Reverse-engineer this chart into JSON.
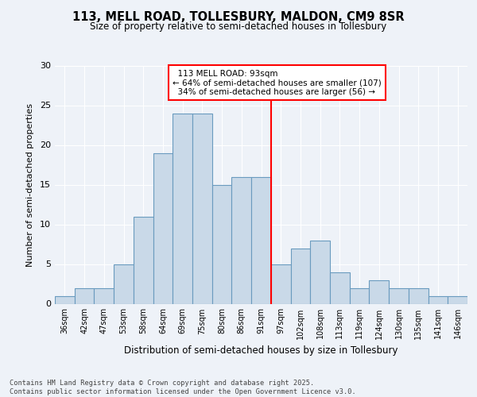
{
  "title_line1": "113, MELL ROAD, TOLLESBURY, MALDON, CM9 8SR",
  "title_line2": "Size of property relative to semi-detached houses in Tollesbury",
  "xlabel": "Distribution of semi-detached houses by size in Tollesbury",
  "ylabel": "Number of semi-detached properties",
  "categories": [
    "36sqm",
    "42sqm",
    "47sqm",
    "53sqm",
    "58sqm",
    "64sqm",
    "69sqm",
    "75sqm",
    "80sqm",
    "86sqm",
    "91sqm",
    "97sqm",
    "102sqm",
    "108sqm",
    "113sqm",
    "119sqm",
    "124sqm",
    "130sqm",
    "135sqm",
    "141sqm",
    "146sqm"
  ],
  "values": [
    1,
    2,
    2,
    5,
    11,
    19,
    24,
    24,
    15,
    16,
    16,
    5,
    7,
    8,
    4,
    2,
    3,
    2,
    2,
    1,
    1
  ],
  "bar_color": "#c9d9e8",
  "bar_edge_color": "#6a9bbf",
  "marker_value": 93,
  "marker_label": "113 MELL ROAD: 93sqm",
  "pct_smaller": 64,
  "n_smaller": 107,
  "pct_larger": 34,
  "n_larger": 56,
  "annotation_box_color": "white",
  "annotation_box_edge": "red",
  "marker_line_color": "red",
  "bg_color": "#eef2f8",
  "ylim": [
    0,
    30
  ],
  "yticks": [
    0,
    5,
    10,
    15,
    20,
    25,
    30
  ],
  "footer1": "Contains HM Land Registry data © Crown copyright and database right 2025.",
  "footer2": "Contains public sector information licensed under the Open Government Licence v3.0."
}
